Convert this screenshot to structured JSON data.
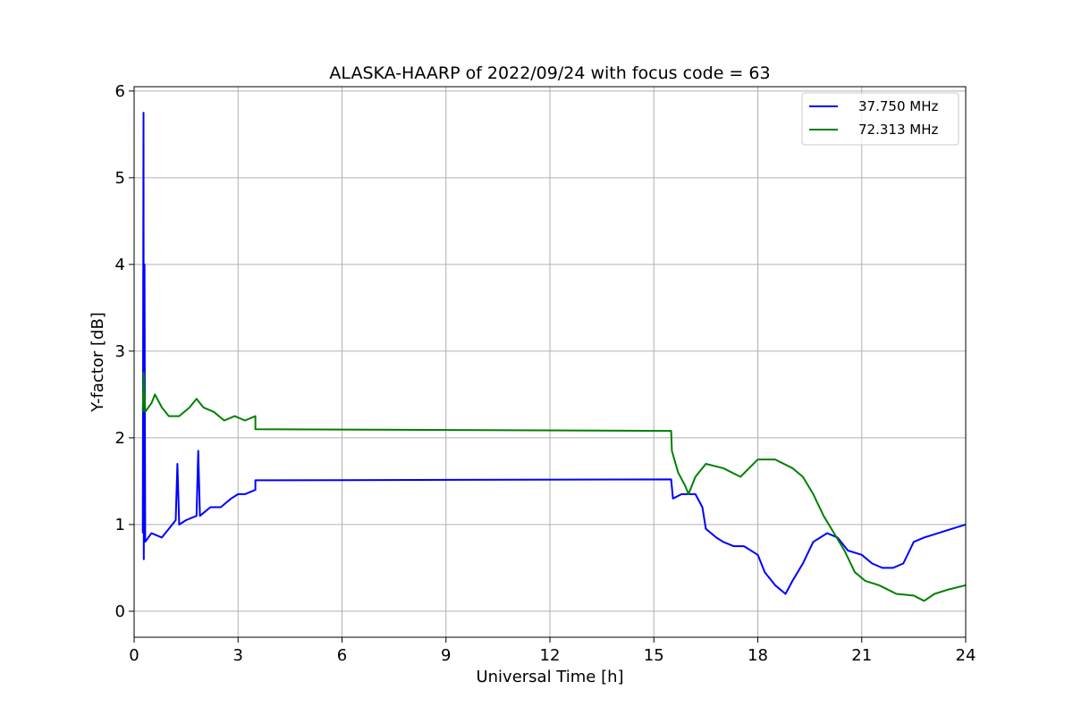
{
  "chart_data": {
    "type": "line",
    "title": "ALASKA-HAARP of 2022/09/24 with focus code = 63",
    "xlabel": "Universal Time [h]",
    "ylabel": "Y-factor [dB]",
    "xlim": [
      0,
      24
    ],
    "ylim": [
      -0.3,
      6.05
    ],
    "x_ticks": [
      "0",
      "3",
      "6",
      "9",
      "12",
      "15",
      "18",
      "21",
      "24"
    ],
    "y_ticks": [
      "0",
      "1",
      "2",
      "3",
      "4",
      "5",
      "6"
    ],
    "grid": true,
    "legend_position": "top-right",
    "series": [
      {
        "name": "37.750 MHz",
        "color": "#0000ff",
        "points": [
          [
            0.25,
            0.9
          ],
          [
            0.27,
            5.75
          ],
          [
            0.28,
            0.6
          ],
          [
            0.3,
            4.0
          ],
          [
            0.32,
            0.8
          ],
          [
            0.5,
            0.9
          ],
          [
            0.8,
            0.85
          ],
          [
            1.0,
            0.95
          ],
          [
            1.2,
            1.05
          ],
          [
            1.25,
            1.7
          ],
          [
            1.3,
            1.0
          ],
          [
            1.5,
            1.05
          ],
          [
            1.8,
            1.1
          ],
          [
            1.85,
            1.85
          ],
          [
            1.9,
            1.1
          ],
          [
            2.2,
            1.2
          ],
          [
            2.5,
            1.2
          ],
          [
            2.8,
            1.3
          ],
          [
            3.0,
            1.35
          ],
          [
            3.2,
            1.35
          ],
          [
            3.5,
            1.4
          ],
          [
            3.5,
            1.51
          ],
          [
            15.5,
            1.52
          ],
          [
            15.55,
            1.3
          ],
          [
            15.8,
            1.35
          ],
          [
            16.0,
            1.35
          ],
          [
            16.2,
            1.35
          ],
          [
            16.4,
            1.2
          ],
          [
            16.5,
            0.95
          ],
          [
            16.8,
            0.85
          ],
          [
            17.0,
            0.8
          ],
          [
            17.3,
            0.75
          ],
          [
            17.6,
            0.75
          ],
          [
            18.0,
            0.65
          ],
          [
            18.2,
            0.45
          ],
          [
            18.5,
            0.3
          ],
          [
            18.8,
            0.2
          ],
          [
            19.0,
            0.35
          ],
          [
            19.3,
            0.55
          ],
          [
            19.6,
            0.8
          ],
          [
            20.0,
            0.9
          ],
          [
            20.3,
            0.85
          ],
          [
            20.6,
            0.7
          ],
          [
            21.0,
            0.65
          ],
          [
            21.3,
            0.55
          ],
          [
            21.6,
            0.5
          ],
          [
            21.9,
            0.5
          ],
          [
            22.2,
            0.55
          ],
          [
            22.5,
            0.8
          ],
          [
            22.8,
            0.85
          ],
          [
            23.2,
            0.9
          ],
          [
            23.6,
            0.95
          ],
          [
            24.0,
            1.0
          ]
        ]
      },
      {
        "name": "72.313 MHz",
        "color": "#008000",
        "points": [
          [
            0.25,
            2.3
          ],
          [
            0.28,
            2.75
          ],
          [
            0.32,
            2.3
          ],
          [
            0.5,
            2.4
          ],
          [
            0.6,
            2.5
          ],
          [
            0.8,
            2.35
          ],
          [
            1.0,
            2.25
          ],
          [
            1.3,
            2.25
          ],
          [
            1.6,
            2.35
          ],
          [
            1.8,
            2.45
          ],
          [
            2.0,
            2.35
          ],
          [
            2.3,
            2.3
          ],
          [
            2.6,
            2.2
          ],
          [
            2.9,
            2.25
          ],
          [
            3.2,
            2.2
          ],
          [
            3.5,
            2.25
          ],
          [
            3.5,
            2.1
          ],
          [
            15.5,
            2.08
          ],
          [
            15.52,
            1.85
          ],
          [
            15.7,
            1.6
          ],
          [
            15.9,
            1.45
          ],
          [
            16.0,
            1.35
          ],
          [
            16.2,
            1.55
          ],
          [
            16.5,
            1.7
          ],
          [
            17.0,
            1.65
          ],
          [
            17.5,
            1.55
          ],
          [
            18.0,
            1.75
          ],
          [
            18.5,
            1.75
          ],
          [
            19.0,
            1.65
          ],
          [
            19.3,
            1.55
          ],
          [
            19.6,
            1.35
          ],
          [
            19.9,
            1.1
          ],
          [
            20.2,
            0.9
          ],
          [
            20.5,
            0.7
          ],
          [
            20.8,
            0.45
          ],
          [
            21.1,
            0.35
          ],
          [
            21.5,
            0.3
          ],
          [
            22.0,
            0.2
          ],
          [
            22.5,
            0.18
          ],
          [
            22.8,
            0.12
          ],
          [
            23.1,
            0.2
          ],
          [
            23.5,
            0.25
          ],
          [
            24.0,
            0.3
          ]
        ]
      }
    ]
  }
}
